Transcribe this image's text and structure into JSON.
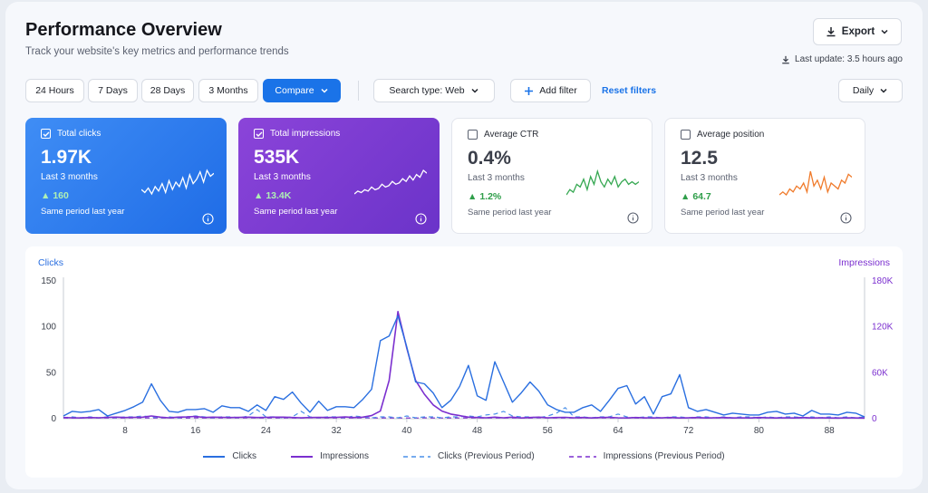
{
  "header": {
    "title": "Performance Overview",
    "subtitle": "Track your website's key metrics and performance trends",
    "export_label": "Export",
    "last_update": "Last update: 3.5 hours ago"
  },
  "filters": {
    "ranges": [
      "24 Hours",
      "7 Days",
      "28 Days",
      "3 Months"
    ],
    "compare_label": "Compare",
    "search_type": "Search type: Web",
    "add_filter": "Add filter",
    "reset_filters": "Reset filters",
    "granularity": "Daily"
  },
  "metrics": [
    {
      "label": "Total clicks",
      "value": "1.97K",
      "period": "Last 3 months",
      "delta": "160",
      "compare": "Same period last year",
      "checked": true,
      "spark_color": "#ffffff",
      "spark": [
        14,
        12,
        15,
        11,
        16,
        13,
        18,
        12,
        20,
        14,
        19,
        16,
        22,
        15,
        24,
        18,
        21,
        26,
        19,
        27,
        23,
        25
      ]
    },
    {
      "label": "Total impressions",
      "value": "535K",
      "period": "Last 3 months",
      "delta": "13.4K",
      "compare": "Same period last year",
      "checked": true,
      "spark_color": "#ffffff",
      "spark": [
        10,
        12,
        11,
        13,
        12,
        15,
        13,
        14,
        17,
        15,
        16,
        19,
        17,
        18,
        21,
        19,
        23,
        20,
        24,
        22,
        27,
        25
      ]
    },
    {
      "label": "Average CTR",
      "value": "0.4%",
      "period": "Last 3 months",
      "delta": "1.2%",
      "compare": "Same period last year",
      "checked": false,
      "spark_color": "#36a852",
      "spark": [
        12,
        14,
        13,
        16,
        15,
        18,
        14,
        19,
        16,
        21,
        17,
        15,
        18,
        16,
        19,
        15,
        17,
        18,
        16,
        17,
        16,
        17
      ]
    },
    {
      "label": "Average position",
      "value": "12.5",
      "period": "Last 3 months",
      "delta": "64.7",
      "compare": "Same period last year",
      "checked": false,
      "spark_color": "#f07a2a",
      "spark": [
        14,
        15,
        14,
        16,
        15,
        17,
        16,
        18,
        15,
        22,
        17,
        19,
        16,
        20,
        15,
        18,
        17,
        16,
        19,
        18,
        21,
        20
      ]
    }
  ],
  "chart_data": {
    "type": "line",
    "ylabel_left": "Clicks",
    "ylabel_right": "Impressions",
    "y_left_ticks": [
      "150",
      "100",
      "50",
      "0"
    ],
    "y_right_ticks": [
      "180K",
      "120K",
      "60K",
      "0"
    ],
    "ylim_left": [
      0,
      150
    ],
    "ylim_right": [
      0,
      180000
    ],
    "xlim": [
      1,
      92
    ],
    "x_ticks": [
      8,
      16,
      24,
      32,
      40,
      48,
      56,
      64,
      72,
      80,
      88
    ],
    "legend": [
      "Clicks",
      "Impressions",
      "Clicks (Previous Period)",
      "Impressions (Previous Period)"
    ],
    "colors": {
      "clicks": "#2a6fe0",
      "impressions": "#7b2fcf",
      "clicks_prev": "#4a90e8",
      "impressions_prev": "#7b2fcf"
    },
    "series": [
      {
        "name": "Clicks",
        "values": [
          3,
          8,
          7,
          8,
          10,
          3,
          6,
          9,
          13,
          18,
          38,
          20,
          8,
          7,
          10,
          10,
          11,
          7,
          14,
          12,
          12,
          8,
          15,
          9,
          24,
          21,
          29,
          17,
          7,
          19,
          9,
          13,
          13,
          12,
          21,
          32,
          85,
          90,
          112,
          78,
          40,
          38,
          28,
          12,
          20,
          35,
          58,
          25,
          20,
          62,
          40,
          18,
          28,
          40,
          30,
          15,
          10,
          7,
          7,
          12,
          15,
          8,
          20,
          33,
          36,
          16,
          24,
          5,
          24,
          27,
          48,
          12,
          8,
          10,
          7,
          4,
          6,
          5,
          4,
          4,
          7,
          8,
          5,
          6,
          3,
          9,
          5,
          5,
          4,
          7,
          6,
          2
        ]
      },
      {
        "name": "Impressions",
        "values": [
          1500,
          1200,
          1000,
          1500,
          1200,
          1800,
          2000,
          1500,
          1800,
          2000,
          3500,
          2000,
          1200,
          2000,
          2200,
          3000,
          1500,
          2000,
          1800,
          1500,
          1800,
          2000,
          1500,
          1800,
          2000,
          2000,
          1500,
          1200,
          1500,
          1600,
          1500,
          1800,
          2200,
          1500,
          2000,
          4000,
          10000,
          50000,
          140000,
          92000,
          50000,
          32000,
          18000,
          10000,
          6000,
          4000,
          2000,
          1500,
          1200,
          2000,
          1200,
          2000,
          1000,
          1500,
          2000,
          1200,
          1500,
          1800,
          1200,
          1500,
          1000,
          1500,
          1800,
          1200,
          1000,
          1500,
          1200,
          1000,
          1200,
          1500,
          1000,
          1200,
          1500,
          1000,
          1200,
          1500,
          1000,
          1200,
          1000,
          1500,
          1200,
          1000,
          1200,
          1000,
          1500,
          1000,
          1200,
          1000,
          800,
          1200,
          1000,
          800
        ]
      },
      {
        "name": "Clicks (Previous Period)",
        "values": [
          1,
          2,
          1,
          2,
          1,
          2,
          1,
          2,
          2,
          3,
          2,
          1,
          2,
          1,
          2,
          3,
          2,
          1,
          2,
          2,
          1,
          3,
          10,
          2,
          2,
          1,
          2,
          8,
          2,
          1,
          2,
          2,
          1,
          3,
          2,
          1,
          2,
          2,
          1,
          3,
          1,
          2,
          2,
          1,
          2,
          2,
          3,
          2,
          4,
          5,
          8,
          3,
          2,
          2,
          1,
          3,
          6,
          12,
          2,
          2,
          1,
          2,
          2,
          5,
          2,
          1,
          2,
          2,
          1,
          2,
          2,
          1,
          2,
          2,
          1,
          2,
          1,
          2,
          2,
          1,
          2,
          1,
          2,
          2,
          1,
          2,
          1,
          2,
          1,
          2,
          1,
          2
        ]
      },
      {
        "name": "Impressions (Previous Period)",
        "values": [
          1000,
          800,
          1200,
          900,
          1000,
          1100,
          900,
          1000,
          1200,
          900,
          1000,
          1100,
          900,
          1000,
          800,
          1200,
          900,
          1000,
          1100,
          900,
          1000,
          1200,
          900,
          1000,
          1100,
          900,
          1000,
          800,
          1200,
          900,
          1000,
          1100,
          900,
          1000,
          1200,
          900,
          1000,
          1100,
          900,
          1000,
          800,
          1200,
          900,
          1000,
          1100,
          900,
          1000,
          1200,
          900,
          1000,
          1100,
          900,
          1000,
          800,
          1200,
          900,
          1000,
          1100,
          900,
          1000,
          1200,
          900,
          1000,
          1100,
          900,
          1000,
          800,
          1200,
          900,
          1000,
          1100,
          900,
          1000,
          1200,
          900,
          1000,
          1100,
          900,
          1000,
          800,
          1200,
          900,
          1000,
          1100,
          900,
          1000,
          1200,
          900,
          1000,
          1100,
          900,
          1000
        ]
      }
    ]
  }
}
